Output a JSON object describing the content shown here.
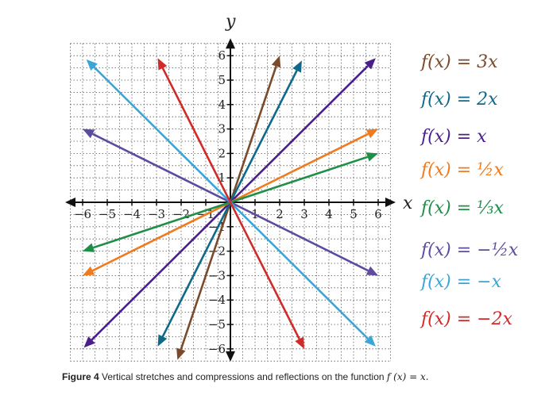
{
  "chart_data": {
    "type": "line",
    "xlabel": "x",
    "ylabel": "y",
    "xlim": [
      -6,
      6
    ],
    "ylim": [
      -6,
      6
    ],
    "x_ticks": [
      "−6",
      "−5",
      "−4",
      "−3",
      "−2",
      "−1",
      "1",
      "2",
      "3",
      "4",
      "5",
      "6"
    ],
    "y_ticks": [
      "6",
      "5",
      "4",
      "3",
      "2",
      "1",
      "−1",
      "−2",
      "−3",
      "−4",
      "−5",
      "−6"
    ],
    "grid": true,
    "legend_placement": "right",
    "series": [
      {
        "name": "f(x) = 3x",
        "slope": 3,
        "x_range": [
          -2.15,
          2.0
        ],
        "color": "#7a4a2a"
      },
      {
        "name": "f(x) = 2x",
        "slope": 2,
        "x_range": [
          -2.95,
          2.9
        ],
        "color": "#0f6a8a"
      },
      {
        "name": "f(x) = x",
        "slope": 1,
        "x_range": [
          -5.95,
          5.9
        ],
        "color": "#4a1f8c"
      },
      {
        "name": "f(x) = ½x",
        "slope": 0.5,
        "x_range": [
          -6,
          6
        ],
        "color": "#f07a1e"
      },
      {
        "name": "f(x) = ⅓x",
        "slope": 0.3333,
        "x_range": [
          -6,
          6
        ],
        "color": "#1f8f48"
      },
      {
        "name": "f(x) = −½x",
        "slope": -0.5,
        "x_range": [
          -6,
          6
        ],
        "color": "#5e4a9e"
      },
      {
        "name": "f(x) = −x",
        "slope": -1,
        "x_range": [
          -5.85,
          5.9
        ],
        "color": "#3aa6d8"
      },
      {
        "name": "f(x) = −2x",
        "slope": -2,
        "x_range": [
          -2.95,
          3.0
        ],
        "color": "#d12a2a"
      }
    ]
  },
  "legend": [
    {
      "text": "f(x) = 3x",
      "color": "#7a4a2a"
    },
    {
      "text": "f(x) = 2x",
      "color": "#0f6a8a"
    },
    {
      "text": "f(x) = x",
      "color": "#4a1f8c"
    },
    {
      "text": "f(x) = ½x",
      "color": "#f07a1e"
    },
    {
      "text": "f(x) = ⅓x",
      "color": "#1f8f48"
    },
    {
      "text": "f(x) = −½x",
      "color": "#5e4a9e"
    },
    {
      "text": "f(x) = −x",
      "color": "#3aa6d8"
    },
    {
      "text": "f(x) = −2x",
      "color": "#d12a2a"
    }
  ],
  "caption": {
    "label": "Figure 4",
    "text": " Vertical stretches and compressions and reflections on the function ",
    "formula": "f (x) = x."
  }
}
